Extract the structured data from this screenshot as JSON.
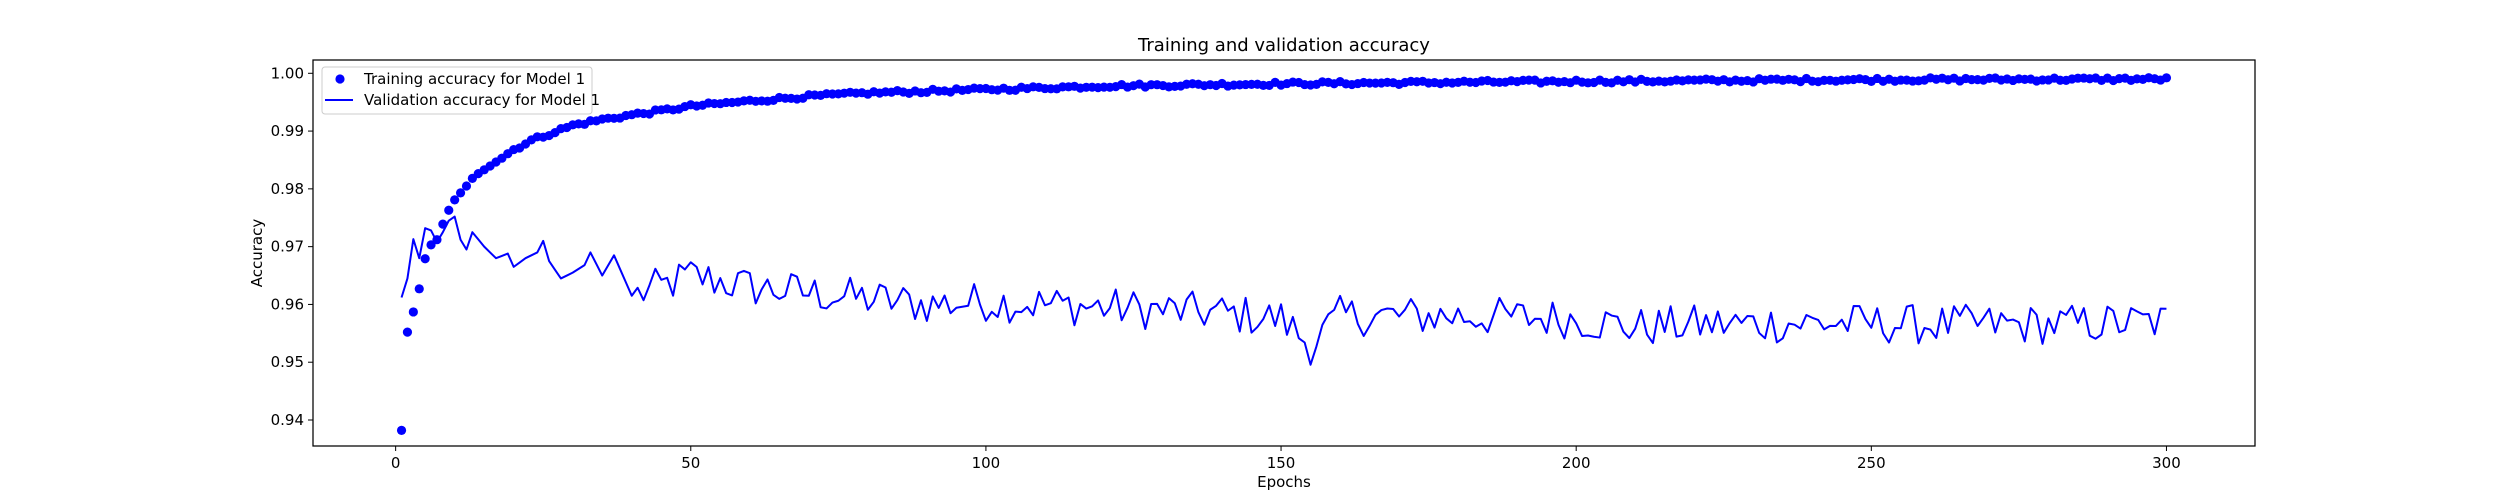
{
  "chart_data": {
    "type": "line",
    "title": "Training and validation accuracy",
    "xlabel": "Epochs",
    "ylabel": "Accuracy",
    "xlim": [
      -14,
      315
    ],
    "ylim": [
      0.9355,
      1.0023
    ],
    "xticks": [
      0,
      50,
      100,
      150,
      200,
      250,
      300
    ],
    "yticks": [
      0.94,
      0.95,
      0.96,
      0.97,
      0.98,
      0.99,
      1.0
    ],
    "ytick_labels": [
      "0.94",
      "0.95",
      "0.96",
      "0.97",
      "0.98",
      "0.99",
      "1.00"
    ],
    "grid": false,
    "legend_position": "top-left",
    "colors": {
      "series": "#0000ff",
      "axis": "#000000"
    },
    "epochs": {
      "start": 1,
      "end": 300
    },
    "series": [
      {
        "name": "Training accuracy for Model 1",
        "style": "markers",
        "anchors": [
          [
            1,
            0.9382
          ],
          [
            2,
            0.9552
          ],
          [
            3,
            0.9587
          ],
          [
            4,
            0.9627
          ],
          [
            5,
            0.9679
          ],
          [
            6,
            0.9703
          ],
          [
            7,
            0.9712
          ],
          [
            8,
            0.9739
          ],
          [
            9,
            0.9763
          ],
          [
            10,
            0.9781
          ],
          [
            12,
            0.9805
          ],
          [
            14,
            0.9828
          ],
          [
            16,
            0.9842
          ],
          [
            18,
            0.9854
          ],
          [
            20,
            0.9868
          ],
          [
            23,
            0.9884
          ],
          [
            26,
            0.9895
          ],
          [
            30,
            0.991
          ],
          [
            35,
            0.992
          ],
          [
            40,
            0.9928
          ],
          [
            45,
            0.9935
          ],
          [
            50,
            0.9943
          ],
          [
            60,
            0.9952
          ],
          [
            70,
            0.996
          ],
          [
            80,
            0.9966
          ],
          [
            90,
            0.9969
          ],
          [
            100,
            0.9972
          ],
          [
            120,
            0.9978
          ],
          [
            150,
            0.9982
          ],
          [
            200,
            0.9986
          ],
          [
            250,
            0.9989
          ],
          [
            300,
            0.999
          ]
        ],
        "noise": 0.0003
      },
      {
        "name": "Validation accuracy for Model 1",
        "style": "line",
        "anchors": [
          [
            1,
            0.9612
          ],
          [
            2,
            0.9645
          ],
          [
            3,
            0.9713
          ],
          [
            4,
            0.968
          ],
          [
            5,
            0.9732
          ],
          [
            6,
            0.9728
          ],
          [
            7,
            0.9708
          ],
          [
            8,
            0.9725
          ],
          [
            9,
            0.9745
          ],
          [
            10,
            0.9752
          ],
          [
            11,
            0.9712
          ],
          [
            12,
            0.9695
          ],
          [
            13,
            0.9725
          ],
          [
            15,
            0.97
          ],
          [
            17,
            0.968
          ],
          [
            19,
            0.9688
          ],
          [
            20,
            0.9665
          ],
          [
            22,
            0.968
          ],
          [
            24,
            0.969
          ],
          [
            25,
            0.971
          ],
          [
            26,
            0.9675
          ],
          [
            28,
            0.9645
          ],
          [
            30,
            0.9655
          ],
          [
            32,
            0.9668
          ],
          [
            33,
            0.969
          ],
          [
            35,
            0.965
          ],
          [
            37,
            0.9685
          ],
          [
            40,
            0.9615
          ],
          [
            45,
            0.963
          ],
          [
            50,
            0.965
          ],
          [
            60,
            0.963
          ],
          [
            70,
            0.962
          ],
          [
            80,
            0.961
          ],
          [
            90,
            0.96
          ],
          [
            100,
            0.9605
          ],
          [
            110,
            0.96
          ],
          [
            120,
            0.9595
          ],
          [
            130,
            0.959
          ],
          [
            140,
            0.9585
          ],
          [
            150,
            0.9575
          ],
          [
            155,
            0.953
          ],
          [
            160,
            0.958
          ],
          [
            180,
            0.958
          ],
          [
            200,
            0.9575
          ],
          [
            210,
            0.956
          ],
          [
            220,
            0.9565
          ],
          [
            240,
            0.9568
          ],
          [
            260,
            0.9565
          ],
          [
            280,
            0.9565
          ],
          [
            300,
            0.957
          ]
        ],
        "noise": 0.0035
      }
    ]
  }
}
